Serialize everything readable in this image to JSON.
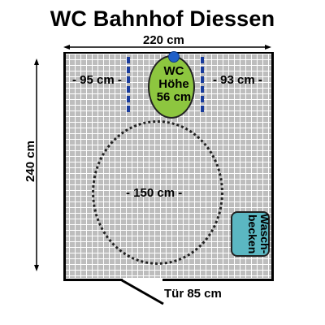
{
  "title": "WC Bahnhof Diessen",
  "dimensions": {
    "width": "220 cm",
    "height": "240 cm",
    "left_clearance": "- 95 cm -",
    "right_clearance": "- 93 cm -",
    "turning_circle": "- 150 cm -",
    "door": "Tür 85 cm"
  },
  "wc": {
    "line1": "WC",
    "line2": "Höhe",
    "line3": "56 cm"
  },
  "basin": {
    "label": "Wasch-becken"
  },
  "colors": {
    "floor_grid": "#bdbdbd",
    "wc": "#8dc63f",
    "basin": "#5bb7c2",
    "grab_bar": "#1a3c9c",
    "flush_button": "#2060c8"
  }
}
